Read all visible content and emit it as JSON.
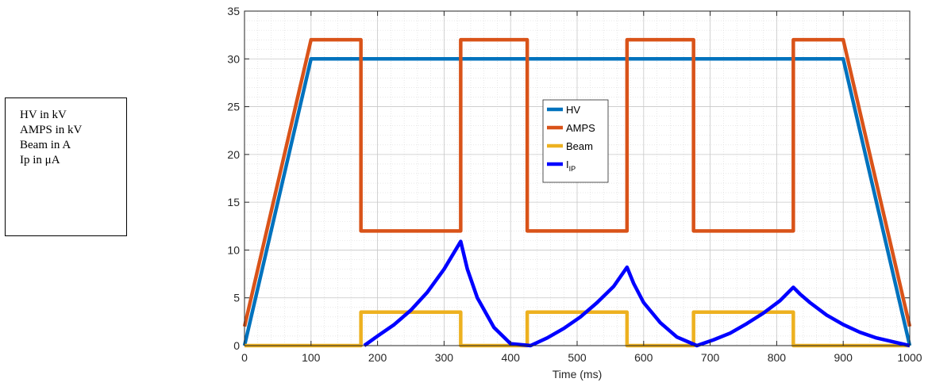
{
  "notes": {
    "lines": [
      "HV in kV",
      "AMPS in kV",
      "Beam in A",
      "Ip in μA"
    ]
  },
  "chart_data": {
    "type": "line",
    "title": "",
    "xlabel": "Time (ms)",
    "ylabel": "",
    "xlim": [
      0,
      1000
    ],
    "ylim": [
      0,
      35
    ],
    "xticks": [
      0,
      100,
      200,
      300,
      400,
      500,
      600,
      700,
      800,
      900,
      1000
    ],
    "yticks": [
      0,
      5,
      10,
      15,
      20,
      25,
      30,
      35
    ],
    "grid": true,
    "minor_grid": true,
    "legend_position": "center",
    "series": [
      {
        "name": "HV",
        "color": "#0072bd",
        "x": [
          0,
          100,
          900,
          1000
        ],
        "y": [
          0,
          30,
          30,
          0
        ]
      },
      {
        "name": "AMPS",
        "color": "#d95319",
        "x": [
          0,
          100,
          175,
          175,
          325,
          325,
          425,
          425,
          575,
          575,
          675,
          675,
          825,
          825,
          900,
          1000
        ],
        "y": [
          2,
          32,
          32,
          12,
          12,
          32,
          32,
          12,
          12,
          32,
          32,
          12,
          12,
          32,
          32,
          2
        ]
      },
      {
        "name": "Beam",
        "color": "#edb120",
        "x": [
          0,
          175,
          175,
          325,
          325,
          425,
          425,
          575,
          575,
          675,
          675,
          825,
          825,
          1000
        ],
        "y": [
          0,
          0,
          3.5,
          3.5,
          0,
          0,
          3.5,
          3.5,
          0,
          0,
          3.5,
          3.5,
          0,
          0
        ]
      },
      {
        "name": "I_IP",
        "label_main": "I",
        "label_sub": "IP",
        "color": "#0000ff",
        "x": [
          180,
          200,
          225,
          250,
          275,
          300,
          325,
          335,
          350,
          375,
          400,
          430,
          455,
          480,
          505,
          530,
          555,
          575,
          585,
          600,
          625,
          650,
          680,
          705,
          730,
          755,
          780,
          805,
          825,
          835,
          850,
          875,
          900,
          925,
          950,
          975,
          1000
        ],
        "y": [
          0,
          1.0,
          2.2,
          3.7,
          5.6,
          8.0,
          10.9,
          8.0,
          5.0,
          1.9,
          0.2,
          0,
          0.8,
          1.8,
          3.0,
          4.5,
          6.2,
          8.2,
          6.5,
          4.5,
          2.4,
          0.9,
          0,
          0.6,
          1.3,
          2.3,
          3.4,
          4.7,
          6.1,
          5.4,
          4.5,
          3.2,
          2.2,
          1.4,
          0.8,
          0.4,
          0
        ]
      }
    ]
  }
}
